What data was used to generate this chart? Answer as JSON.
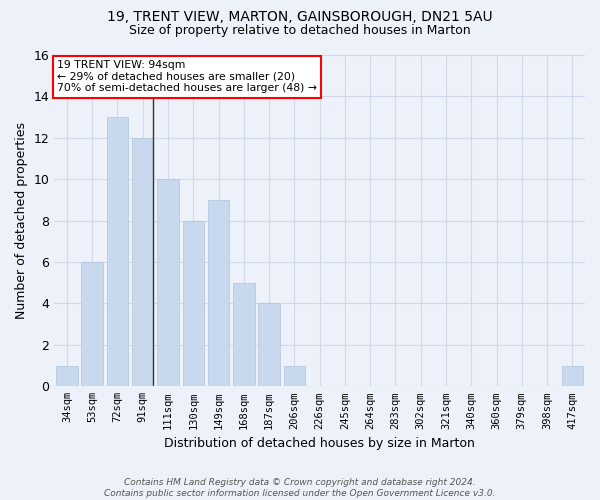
{
  "title1": "19, TRENT VIEW, MARTON, GAINSBOROUGH, DN21 5AU",
  "title2": "Size of property relative to detached houses in Marton",
  "xlabel": "Distribution of detached houses by size in Marton",
  "ylabel": "Number of detached properties",
  "categories": [
    "34sqm",
    "53sqm",
    "72sqm",
    "91sqm",
    "111sqm",
    "130sqm",
    "149sqm",
    "168sqm",
    "187sqm",
    "206sqm",
    "226sqm",
    "245sqm",
    "264sqm",
    "283sqm",
    "302sqm",
    "321sqm",
    "340sqm",
    "360sqm",
    "379sqm",
    "398sqm",
    "417sqm"
  ],
  "values": [
    1,
    6,
    13,
    12,
    10,
    8,
    9,
    5,
    4,
    1,
    0,
    0,
    0,
    0,
    0,
    0,
    0,
    0,
    0,
    0,
    1
  ],
  "bar_color": "#c8d9ee",
  "bar_edge_color": "#b0c4de",
  "annotation_line1": "19 TRENT VIEW: 94sqm",
  "annotation_line2": "← 29% of detached houses are smaller (20)",
  "annotation_line3": "70% of semi-detached houses are larger (48) →",
  "annotation_box_facecolor": "white",
  "annotation_box_edgecolor": "red",
  "footer": "Contains HM Land Registry data © Crown copyright and database right 2024.\nContains public sector information licensed under the Open Government Licence v3.0.",
  "ylim": [
    0,
    16
  ],
  "yticks": [
    0,
    2,
    4,
    6,
    8,
    10,
    12,
    14,
    16
  ],
  "grid_color": "#d0d8ea",
  "bg_color": "#edf1f9",
  "vline_x": 3.42,
  "vline_color": "#333333"
}
